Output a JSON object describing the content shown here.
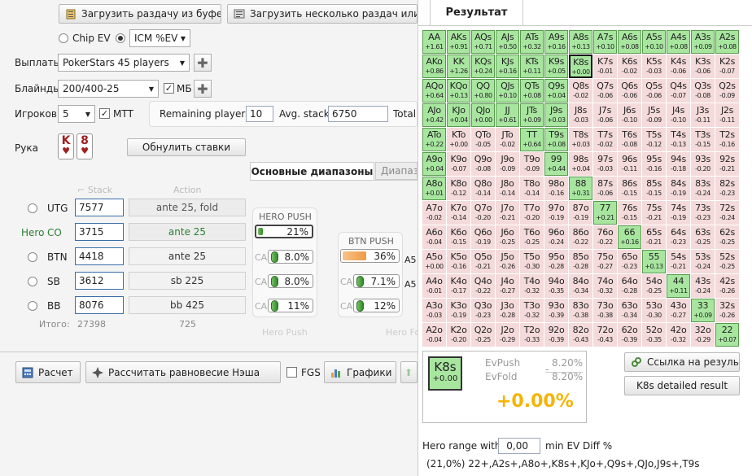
{
  "toolbar": {
    "load_buffer": "Загрузить раздачу из буфера",
    "load_multi": "Загрузить несколько раздач или тур"
  },
  "model": {
    "chip_ev": "Chip EV",
    "icm_value": "ICM %EV"
  },
  "payouts": {
    "label": "Выплаты",
    "value": "PokerStars 45 players"
  },
  "blinds": {
    "label": "Блайнды",
    "value": "200/400-25",
    "mb_label": "МБ"
  },
  "players": {
    "label": "Игроков",
    "value": "5",
    "mtt_label": "МТТ",
    "remaining_label": "Remaining players",
    "remaining_value": "10",
    "avg_label": "Avg. stack",
    "avg_value": "6750",
    "total_label": "Total"
  },
  "hand": {
    "label": "Рука",
    "card1": "K",
    "card2": "8",
    "reset_button": "Обнулить ставки"
  },
  "tabs": {
    "main": "Основные диапазоны",
    "second": "Диапазо"
  },
  "table": {
    "stack_header": "Stack",
    "action_header": "Action",
    "hero_label": "Hero",
    "rows": [
      {
        "pos": "UTG",
        "stack": "7577",
        "action": "ante 25, fold"
      },
      {
        "pos": "CO",
        "stack": "3715",
        "action": "ante 25"
      },
      {
        "pos": "BTN",
        "stack": "4418",
        "action": "ante 25"
      },
      {
        "pos": "SB",
        "stack": "3612",
        "action": "sb 225"
      },
      {
        "pos": "BB",
        "stack": "8076",
        "action": "bb 425"
      }
    ],
    "total_label": "Итого:",
    "total_stack": "27398",
    "total_action": "725"
  },
  "ranges": {
    "hero_push": {
      "title": "HERO PUSH",
      "value": "21%",
      "fill": 0.21,
      "footer": "Hero Push"
    },
    "btn_push": {
      "title": "BTN PUSH",
      "value": "36%",
      "fill": 0.36,
      "footer": "Hero Fo"
    },
    "ca_label": "CA",
    "calls": [
      {
        "who": "hero-btn",
        "value": "8.0%"
      },
      {
        "who": "hero-sb",
        "value": "8.0%"
      },
      {
        "who": "hero-bb",
        "value": "11%"
      },
      {
        "who": "btn-sb",
        "value": "7.1%"
      },
      {
        "who": "btn-bb",
        "value": "12%"
      },
      {
        "who": "partial-1",
        "value": "A5"
      },
      {
        "who": "partial-2",
        "value": "A5"
      }
    ]
  },
  "bottom": {
    "calc": "Расчет",
    "nash": "Рассчитать равновесие Нэша",
    "fgs": "FGS",
    "charts": "Графики"
  },
  "result": {
    "title": "Результат",
    "ranks": [
      "A",
      "K",
      "Q",
      "J",
      "T",
      "9",
      "8",
      "7",
      "6",
      "5",
      "4",
      "3",
      "2"
    ],
    "ev_rows": [
      [
        "+1.61",
        "+0.91",
        "+0.71",
        "+0.50",
        "+0.32",
        "+0.16",
        "+0.13",
        "+0.10",
        "+0.08",
        "+0.10",
        "+0.08",
        "+0.09",
        "+0.08"
      ],
      [
        "+0.86",
        "+1.26",
        "+0.24",
        "+0.16",
        "+0.11",
        "+0.05",
        "+0.00",
        "-0.01",
        "-0.02",
        "-0.03",
        "-0.06",
        "-0.06",
        "-0.07"
      ],
      [
        "+0.64",
        "+0.13",
        "+0.80",
        "+0.10",
        "+0.08",
        "+0.04",
        "-0.02",
        "-0.06",
        "-0.06",
        "-0.06",
        "-0.07",
        "-0.08",
        "-0.09"
      ],
      [
        "+0.42",
        "+0.04",
        "+0.00",
        "+0.61",
        "+0.09",
        "+0.03",
        "-0.03",
        "-0.06",
        "-0.10",
        "-0.09",
        "-0.10",
        "-0.11",
        "-0.11"
      ],
      [
        "+0.22",
        "+0.00",
        "-0.05",
        "-0.02",
        "+0.64",
        "+0.08",
        "+0.03",
        "-0.02",
        "-0.08",
        "-0.12",
        "-0.13",
        "-0.15",
        "-0.16"
      ],
      [
        "+0.04",
        "-0.07",
        "-0.08",
        "-0.09",
        "-0.09",
        "+0.44",
        "+0.04",
        "-0.03",
        "-0.11",
        "-0.16",
        "-0.18",
        "-0.20",
        "-0.21"
      ],
      [
        "+0.01",
        "-0.12",
        "-0.14",
        "-0.14",
        "-0.14",
        "-0.16",
        "+0.31",
        "-0.06",
        "-0.15",
        "-0.15",
        "-0.19",
        "-0.24",
        "-0.23"
      ],
      [
        "-0.02",
        "-0.14",
        "-0.20",
        "-0.21",
        "-0.20",
        "-0.19",
        "-0.19",
        "+0.21",
        "-0.15",
        "-0.21",
        "-0.19",
        "-0.23",
        "-0.24"
      ],
      [
        "-0.04",
        "-0.15",
        "-0.19",
        "-0.25",
        "-0.25",
        "-0.24",
        "-0.22",
        "-0.22",
        "+0.16",
        "-0.21",
        "-0.23",
        "-0.25",
        "-0.25"
      ],
      [
        "+0.00",
        "-0.16",
        "-0.21",
        "-0.26",
        "-0.30",
        "-0.28",
        "-0.28",
        "-0.27",
        "-0.23",
        "+0.13",
        "-0.21",
        "-0.24",
        "-0.25"
      ],
      [
        "-0.01",
        "-0.17",
        "-0.22",
        "-0.27",
        "-0.32",
        "-0.35",
        "-0.34",
        "-0.32",
        "-0.28",
        "-0.25",
        "+0.11",
        "-0.24",
        "-0.26"
      ],
      [
        "-0.03",
        "-0.19",
        "-0.23",
        "-0.28",
        "-0.32",
        "-0.39",
        "-0.38",
        "-0.38",
        "-0.34",
        "-0.30",
        "-0.27",
        "+0.09",
        "-0.26"
      ],
      [
        "-0.04",
        "-0.20",
        "-0.25",
        "-0.29",
        "-0.33",
        "-0.39",
        "-0.43",
        "-0.43",
        "-0.39",
        "-0.35",
        "-0.32",
        "-0.29",
        "+0.07"
      ]
    ],
    "push_rows": [
      [
        1,
        1,
        1,
        1,
        1,
        1,
        1,
        1,
        1,
        1,
        1,
        1,
        1
      ],
      [
        1,
        1,
        1,
        1,
        1,
        1,
        1,
        0,
        0,
        0,
        0,
        0,
        0
      ],
      [
        1,
        1,
        1,
        1,
        1,
        1,
        0,
        0,
        0,
        0,
        0,
        0,
        0
      ],
      [
        1,
        1,
        1,
        1,
        1,
        1,
        0,
        0,
        0,
        0,
        0,
        0,
        0
      ],
      [
        1,
        0,
        0,
        0,
        1,
        1,
        0,
        0,
        0,
        0,
        0,
        0,
        0
      ],
      [
        1,
        0,
        0,
        0,
        0,
        1,
        0,
        0,
        0,
        0,
        0,
        0,
        0
      ],
      [
        1,
        0,
        0,
        0,
        0,
        0,
        1,
        0,
        0,
        0,
        0,
        0,
        0
      ],
      [
        0,
        0,
        0,
        0,
        0,
        0,
        0,
        1,
        0,
        0,
        0,
        0,
        0
      ],
      [
        0,
        0,
        0,
        0,
        0,
        0,
        0,
        0,
        1,
        0,
        0,
        0,
        0
      ],
      [
        0,
        0,
        0,
        0,
        0,
        0,
        0,
        0,
        0,
        1,
        0,
        0,
        0
      ],
      [
        0,
        0,
        0,
        0,
        0,
        0,
        0,
        0,
        0,
        0,
        1,
        0,
        0
      ],
      [
        0,
        0,
        0,
        0,
        0,
        0,
        0,
        0,
        0,
        0,
        0,
        1,
        0
      ],
      [
        0,
        0,
        0,
        0,
        0,
        0,
        0,
        0,
        0,
        0,
        0,
        0,
        1
      ]
    ],
    "selected_hand": "K8s",
    "summary": {
      "hand": "K8s",
      "hand_ev": "+0.00",
      "evpush_label": "EvPush",
      "evpush_value": "8.20%",
      "evfold_label": "EvFold",
      "evfold_value": "8.20%",
      "minus": "-",
      "diff": "+0.00%"
    },
    "link_button": "Ссылка на результат",
    "detail_button": "K8s detailed result",
    "hero_range_label": "Hero range with",
    "hero_range_value": "0,00",
    "hero_range_suffix": "min EV Diff %",
    "range_string": "(21,0%) 22+,A2s+,A8o+,K8s+,KJo+,Q9s+,QJo,J9s+,T9s"
  },
  "colors": {
    "push": "#a8e6a0",
    "fold": "#f4dada",
    "diff": "#f5b400",
    "green_pos": "#2e7d32"
  }
}
